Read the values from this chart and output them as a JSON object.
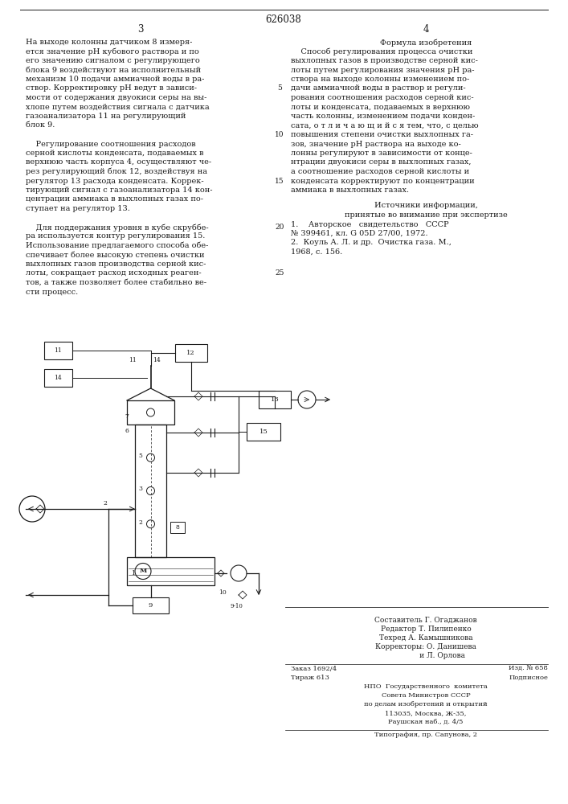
{
  "patent_number": "626038",
  "page_left": "3",
  "page_right": "4",
  "bg": "#ffffff",
  "fg": "#1a1a1a",
  "left_text": [
    "На выходе колонны датчиком 8 измеря-",
    "ется значение pH кубового раствора и по",
    "его значению сигналом с регулирующего",
    "блока 9 воздействуют на исполнительный",
    "механизм 10 подачи аммиачной воды в ра-",
    "створ. Корректировку pH ведут в зависи-",
    "мости от содержания двуокиси серы на вы-",
    "хлопе путем воздействия сигнала с датчика",
    "газоанализатора 11 на регулирующий",
    "блок 9.",
    "",
    "    Регулирование соотношения расходов",
    "серной кислоты конденсата, подаваемых в",
    "верхнюю часть корпуса 4, осуществляют че-",
    "рез регулирующий блок 12, воздействуя на",
    "регулятор 13 расхода конденсата. Коррек-",
    "тирующий сигнал с газоанализатора 14 кон-",
    "центрации аммиака в выхлопных газах по-",
    "ступает на регулятор 13.",
    "",
    "    Для поддержания уровня в кубе скруббе-",
    "ра используется контур регулирования 15.",
    "Использование предлагаемого способа обе-",
    "спечивает более высокую степень очистки",
    "выхлопных газов производства серной кис-",
    "лоты, сокращает расход исходных реаген-",
    "тов, а также позволяет более стабильно ве-",
    "сти процесс."
  ],
  "right_title": "Формула изобретения",
  "right_text": [
    "    Способ регулирования процесса очистки",
    "выхлопных газов в производстве серной кис-",
    "лоты путем регулирования значения pH ра-",
    "створа на выходе колонны изменением по-",
    "дачи аммиачной воды в раствор и регули-",
    "рования соотношения расходов серной кис-",
    "лоты и конденсата, подаваемых в верхнюю",
    "часть колонны, изменением подачи конден-",
    "сата, о т л и ч а ю щ и й с я тем, что, с целью",
    "повышения степени очистки выхлопных га-",
    "зов, значение pH раствора на выходе ко-",
    "лонны регулируют в зависимости от конце-",
    "нтрации двуокиси серы в выхлопных газах,",
    "а соотношение расходов серной кислоты и",
    "конденсата корректируют по концентрации",
    "аммиака в выхлопных газах."
  ],
  "src_title": "Источники информации,",
  "src_sub": "принятые во внимание при экспертизе",
  "src1a": "1.    Авторское   свидетельство   СССР",
  "src1b": "№ 399461, кл. G 05D 27/00, 1972.",
  "src2a": "2.  Коуль А. Л. и др.  Очистка газа. М.,",
  "src2b": "1968, с. 156.",
  "composer": "Составитель Г. Огаджанов",
  "editor": "Редактор Т. Пилипенко",
  "techred": "Техред А. Камышникова",
  "corr": "Корректоры: О. Данишева",
  "corr2": "              и Л. Орлова",
  "order": "Заказ 1692/4",
  "edition_num": "Изд. № 658",
  "tirazh": "Тираж 613",
  "subscription": "Подписное",
  "npo": "НПО  Государственного  комитета",
  "soviet": "Совета Министров СССР",
  "committee": "по делам изобретений и открытий",
  "address": "113035, Москва, Ж-35,",
  "street": "Раушская наб., д. 4/5",
  "typo": "Типография, пр. Сапунова, 2",
  "line_numbers": [
    5,
    10,
    15,
    20,
    25
  ]
}
